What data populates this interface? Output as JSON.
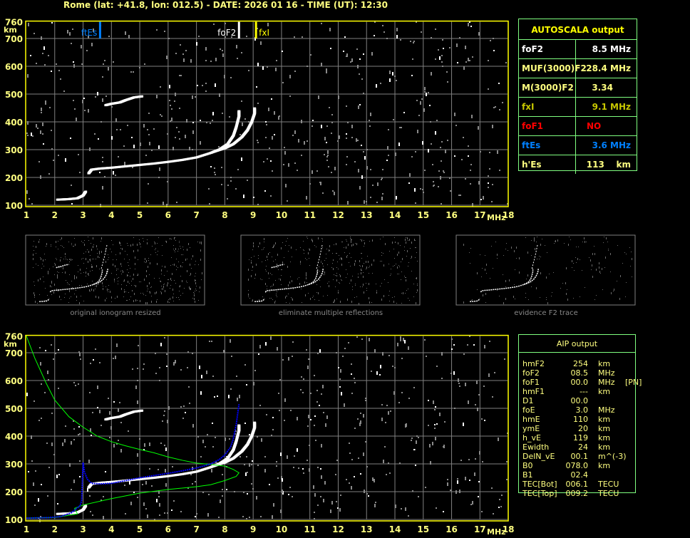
{
  "title": "Rome (lat: +41.8, lon: 012.5) - DATE: 2026 01 16 - TIME (UT): 12:30",
  "colors": {
    "axis": "#ffff00",
    "tick_label": "#ffff80",
    "grid": "#808080",
    "trace": "#ffffff",
    "ftEs": "#0080ff",
    "foF2": "#ffffff",
    "fxI": "#ffff00",
    "profile": "#00ff00",
    "virtual_height": "#0000ff",
    "panel_border": "#80ff80"
  },
  "axis": {
    "x_unit": "MHz",
    "y_unit": "km",
    "x_ticks": [
      "1",
      "2",
      "3",
      "4",
      "5",
      "6",
      "7",
      "8",
      "9",
      "10",
      "11",
      "12",
      "13",
      "14",
      "15",
      "16",
      "17",
      "18"
    ],
    "y_ticks": [
      "100",
      "200",
      "300",
      "400",
      "500",
      "600",
      "700",
      "760"
    ]
  },
  "markers": [
    {
      "label": "ftEs",
      "freq": 3.6,
      "color": "#0080ff"
    },
    {
      "label": "foF2",
      "freq": 8.5,
      "color": "#ffffff"
    },
    {
      "label": "fxI",
      "freq": 9.1,
      "color": "#ffff00"
    }
  ],
  "chart_data": [
    {
      "type": "scatter",
      "title": "",
      "xlabel": "MHz",
      "ylabel": "km",
      "xlim": [
        1,
        18
      ],
      "ylim": [
        100,
        760
      ],
      "grid": true,
      "series": [
        {
          "values": [
            [
              2.1,
              120
            ],
            [
              2.5,
              122
            ],
            [
              2.8,
              125
            ],
            [
              3.0,
              135
            ],
            [
              3.1,
              150
            ]
          ]
        },
        {
          "values": [
            [
              3.2,
              215
            ],
            [
              3.3,
              228
            ],
            [
              3.6,
              232
            ],
            [
              4,
              235
            ],
            [
              4.5,
              240
            ],
            [
              5,
              245
            ],
            [
              5.5,
              250
            ],
            [
              6,
              256
            ],
            [
              6.5,
              263
            ],
            [
              7,
              272
            ],
            [
              7.5,
              288
            ],
            [
              7.8,
              300
            ],
            [
              8.1,
              320
            ],
            [
              8.3,
              350
            ],
            [
              8.4,
              380
            ],
            [
              8.5,
              420
            ],
            [
              8.5,
              440
            ]
          ]
        },
        {
          "values": [
            [
              7.6,
              292
            ],
            [
              8,
              305
            ],
            [
              8.3,
              320
            ],
            [
              8.6,
              345
            ],
            [
              8.8,
              370
            ],
            [
              8.95,
              400
            ],
            [
              9.05,
              430
            ],
            [
              9.05,
              450
            ]
          ]
        },
        {
          "values": [
            [
              3.8,
              460
            ],
            [
              4.0,
              465
            ],
            [
              4.3,
              470
            ],
            [
              4.5,
              478
            ],
            [
              4.8,
              488
            ],
            [
              5.1,
              492
            ]
          ]
        }
      ]
    },
    {
      "type": "line",
      "title": "",
      "xlabel": "MHz",
      "ylabel": "km",
      "xlim": [
        1,
        18
      ],
      "ylim": [
        100,
        760
      ],
      "grid": true,
      "series": [
        {
          "values": [
            [
              1,
              760
            ],
            [
              1.3,
              680
            ],
            [
              1.7,
              590
            ],
            [
              2,
              530
            ],
            [
              2.5,
              470
            ],
            [
              3,
              432
            ],
            [
              3.5,
              400
            ],
            [
              4,
              380
            ],
            [
              4.5,
              365
            ],
            [
              5,
              352
            ],
            [
              5.5,
              340
            ],
            [
              6,
              325
            ],
            [
              6.5,
              313
            ],
            [
              7,
              303
            ],
            [
              7.5,
              298
            ],
            [
              8,
              292
            ],
            [
              8.3,
              280
            ],
            [
              8.5,
              268
            ],
            [
              8.4,
              255
            ],
            [
              8,
              240
            ],
            [
              7.5,
              225
            ],
            [
              7,
              218
            ],
            [
              6,
              208
            ],
            [
              5,
              195
            ],
            [
              4,
              175
            ],
            [
              3,
              152
            ],
            [
              2.7,
              140
            ],
            [
              2.8,
              120
            ],
            [
              2,
              107
            ],
            [
              1,
              105
            ]
          ]
        },
        {
          "values": [
            [
              1,
              105
            ],
            [
              1.8,
              107
            ],
            [
              2.2,
              110
            ],
            [
              2.6,
              125
            ],
            [
              2.9,
              150
            ],
            [
              2.95,
              170
            ],
            [
              3.0,
              305
            ],
            [
              3.05,
              270
            ],
            [
              3.15,
              245
            ],
            [
              3.3,
              230
            ],
            [
              3.6,
              228
            ],
            [
              4,
              230
            ],
            [
              4.5,
              240
            ],
            [
              5,
              250
            ],
            [
              5.5,
              258
            ],
            [
              6,
              266
            ],
            [
              6.5,
              275
            ],
            [
              7,
              285
            ],
            [
              7.5,
              300
            ],
            [
              7.8,
              315
            ],
            [
              8,
              332
            ],
            [
              8.2,
              360
            ],
            [
              8.3,
              390
            ],
            [
              8.4,
              440
            ],
            [
              8.5,
              515
            ]
          ]
        }
      ]
    }
  ],
  "thumbnails": [
    {
      "caption": "original ionogram resized"
    },
    {
      "caption": "eliminate multiple reflections"
    },
    {
      "caption": "evidence F2 trace"
    }
  ],
  "autoscala": {
    "title": "AUTOSCALA output",
    "rows": [
      {
        "key": "foF2",
        "value": "8.5 MHz",
        "color": "#ffffff"
      },
      {
        "key": "MUF(3000)F2",
        "value": "28.4 MHz",
        "color": "#ffff80"
      },
      {
        "key": "M(3000)F2",
        "value": "3.34      ",
        "color": "#ffff80"
      },
      {
        "key": "fxI",
        "value": "9.1 MHz",
        "color": "#c8c800"
      },
      {
        "key": "foF1",
        "value": "NO          ",
        "color": "#ff0000"
      },
      {
        "key": "ftEs",
        "value": "3.6 MHz",
        "color": "#0080ff"
      },
      {
        "key": "h'Es",
        "value": "113    km",
        "color": "#ffff80"
      }
    ]
  },
  "aip": {
    "title": "AIP output",
    "rows": [
      {
        "name": "hmF2",
        "value": "254",
        "unit": "km",
        "extra": ""
      },
      {
        "name": "foF2",
        "value": "08.5",
        "unit": "MHz",
        "extra": ""
      },
      {
        "name": "foF1",
        "value": "00.0",
        "unit": "MHz",
        "extra": "[PN]"
      },
      {
        "name": "hmF1",
        "value": "---",
        "unit": "km",
        "extra": ""
      },
      {
        "name": "D1",
        "value": "00.0",
        "unit": "",
        "extra": ""
      },
      {
        "name": "foE",
        "value": "3.0",
        "unit": "MHz",
        "extra": ""
      },
      {
        "name": "hmE",
        "value": "110",
        "unit": "km",
        "extra": ""
      },
      {
        "name": "ymE",
        "value": "20",
        "unit": "km",
        "extra": ""
      },
      {
        "name": "h_vE",
        "value": "119",
        "unit": "km",
        "extra": ""
      },
      {
        "name": "Ewidth",
        "value": "24",
        "unit": "km",
        "extra": ""
      },
      {
        "name": "DelN_vE",
        "value": "00.1",
        "unit": "m^(-3)",
        "extra": ""
      },
      {
        "name": "B0",
        "value": "078.0",
        "unit": "km",
        "extra": ""
      },
      {
        "name": "B1",
        "value": "02.4",
        "unit": "",
        "extra": ""
      },
      {
        "name": "TEC[Bot]",
        "value": "006.1",
        "unit": "TECU",
        "extra": ""
      },
      {
        "name": "TEC[Top]",
        "value": "009.2",
        "unit": "TECU",
        "extra": ""
      }
    ]
  }
}
